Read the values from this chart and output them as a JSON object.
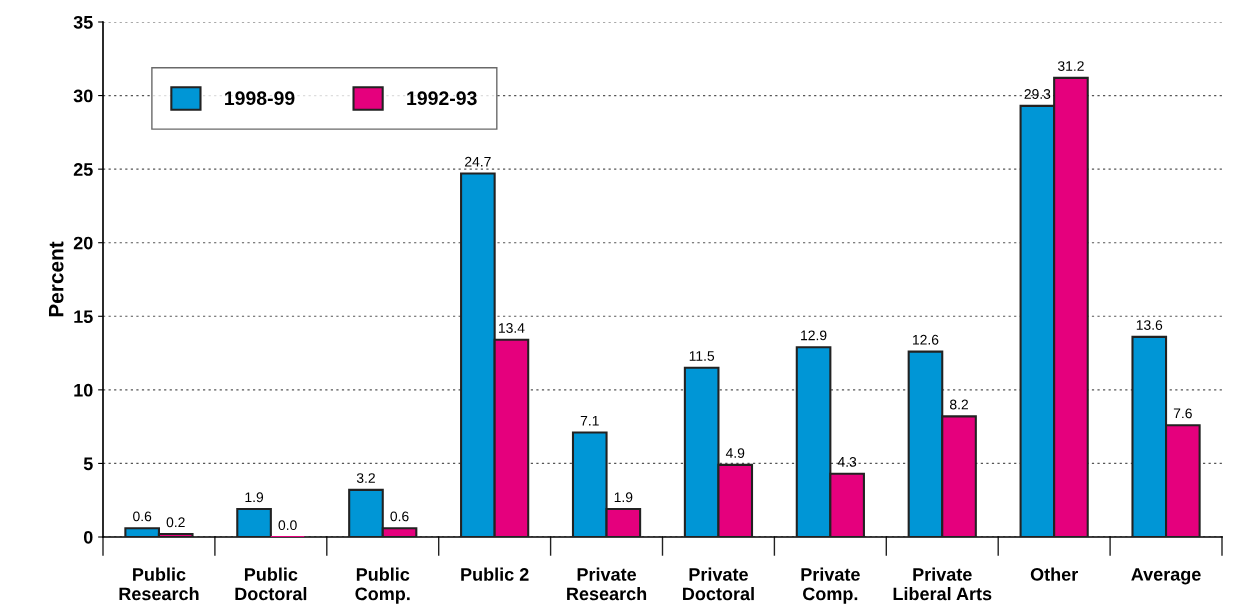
{
  "chart_data": {
    "type": "bar",
    "ylabel": "Percent",
    "categories": [
      "Public\nResearch",
      "Public\nDoctoral",
      "Public\nComp.",
      "Public 2",
      "Private\nResearch",
      "Private\nDoctoral",
      "Private\nComp.",
      "Private\nLiberal Arts",
      "Other",
      "Average"
    ],
    "series": [
      {
        "name": "1998-99",
        "color": "#0096d6",
        "values": [
          0.6,
          1.9,
          3.2,
          24.7,
          7.1,
          11.5,
          12.9,
          12.6,
          29.3,
          13.6
        ],
        "value_labels": [
          "0.6",
          "1.9",
          "3.2",
          "24.7",
          "7.1",
          "11.5",
          "12.9",
          "12.6",
          "29.3",
          "13.6"
        ]
      },
      {
        "name": "1992-93",
        "color": "#e5007d",
        "values": [
          0.2,
          0.0,
          0.6,
          13.4,
          1.9,
          4.9,
          4.3,
          8.2,
          31.2,
          7.6
        ],
        "value_labels": [
          "0.2",
          "0.0",
          "0.6",
          "13.4",
          "1.9",
          "4.9",
          "4.3",
          "8.2",
          "31.2",
          "7.6"
        ]
      }
    ],
    "ylim": [
      0,
      35
    ],
    "yticks": [
      0,
      5,
      10,
      15,
      20,
      25,
      30,
      35
    ],
    "grid": "y",
    "legend": "top left"
  }
}
